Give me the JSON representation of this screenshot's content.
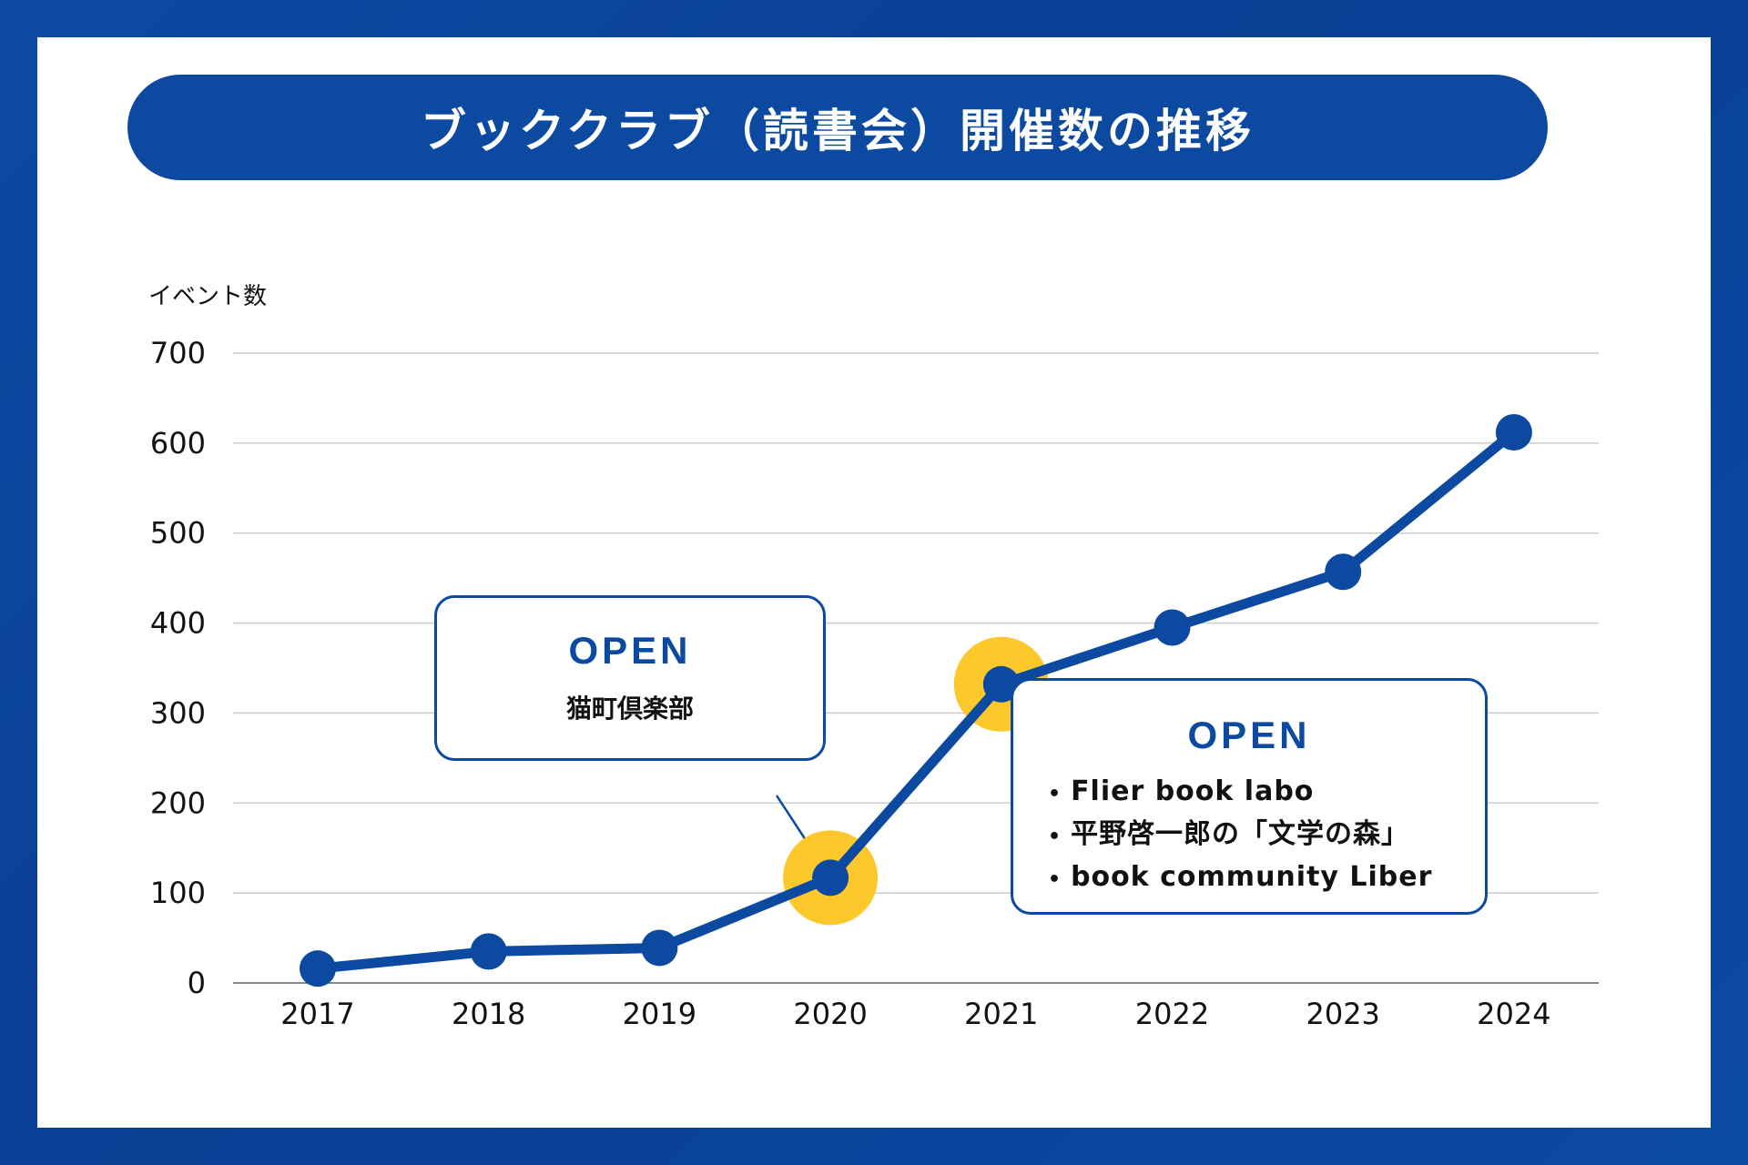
{
  "title": "ブッククラブ（読書会）開催数の推移",
  "colors": {
    "background": "#0b4aa0",
    "line": "#0b4aa0",
    "highlight": "#fcc82c",
    "grid": "#cccccc",
    "text": "#111111"
  },
  "chart_data": {
    "type": "line",
    "title": "ブッククラブ（読書会）開催数の推移",
    "xlabel": "",
    "ylabel": "イベント数",
    "categories": [
      "2017",
      "2018",
      "2019",
      "2020",
      "2021",
      "2022",
      "2023",
      "2024"
    ],
    "values": [
      16,
      35,
      39,
      117,
      332,
      395,
      457,
      612
    ],
    "ylim": [
      0,
      700
    ],
    "yticks": [
      "0",
      "100",
      "200",
      "300",
      "400",
      "500",
      "600",
      "700"
    ],
    "grid": true,
    "highlights": [
      "2020",
      "2021"
    ]
  },
  "annotations": {
    "a2020": {
      "year": "2020",
      "heading": "OPEN",
      "items": [
        "猫町倶楽部"
      ]
    },
    "a2021": {
      "year": "2021",
      "heading": "OPEN",
      "items": [
        "Flier book labo",
        "平野啓一郎の「文学の森」",
        "book community Liber"
      ]
    }
  }
}
